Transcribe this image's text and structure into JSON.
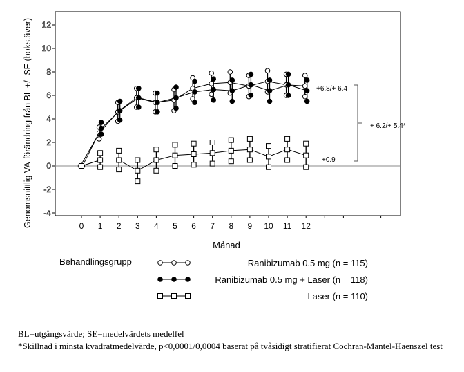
{
  "chart_data": {
    "type": "line",
    "xlabel": "Månad",
    "ylabel": "Genomsnittlig VA-förändring från BL +/- SE (bokstäver)",
    "x": [
      0,
      1,
      2,
      3,
      4,
      5,
      6,
      7,
      8,
      9,
      10,
      11,
      12
    ],
    "xticks": [
      "0",
      "1",
      "2",
      "3",
      "4",
      "5",
      "6",
      "7",
      "8",
      "9",
      "10",
      "11",
      "12"
    ],
    "yticks": [
      "-4",
      "-2",
      "0",
      "2",
      "4",
      "6",
      "8",
      "10",
      "12"
    ],
    "ylim": [
      -4,
      12.5
    ],
    "series": [
      {
        "name": "Ranibizumab 0.5 mg (n = 115)",
        "marker": "open-circle",
        "values": [
          0,
          2.8,
          4.6,
          5.8,
          5.4,
          5.6,
          6.6,
          7.0,
          7.1,
          6.8,
          7.2,
          6.9,
          6.8
        ],
        "se": [
          0,
          0.5,
          0.8,
          0.8,
          0.8,
          0.9,
          0.9,
          0.9,
          0.9,
          0.9,
          0.9,
          0.9,
          0.9
        ]
      },
      {
        "name": "Ranibizumab 0.5 mg + Laser (n = 118)",
        "marker": "filled-circle",
        "values": [
          0,
          3.2,
          4.7,
          5.8,
          5.4,
          5.8,
          6.3,
          6.5,
          6.4,
          6.9,
          6.4,
          6.9,
          6.4
        ],
        "se": [
          0,
          0.5,
          0.8,
          0.8,
          0.8,
          0.9,
          0.9,
          0.9,
          0.9,
          0.9,
          0.9,
          0.9,
          0.9
        ]
      },
      {
        "name": "Laser (n = 110)",
        "marker": "open-square",
        "values": [
          0,
          0.5,
          0.5,
          -0.4,
          0.5,
          0.9,
          1.0,
          1.1,
          1.3,
          1.4,
          0.8,
          1.4,
          0.9
        ],
        "se": [
          0,
          0.6,
          0.8,
          0.9,
          0.9,
          0.9,
          0.9,
          0.9,
          0.9,
          0.9,
          0.9,
          0.9,
          1.0
        ]
      }
    ],
    "annotations": [
      "+6.8/+ 6.4",
      "+ 6.2/+ 5.4*",
      "+0.9"
    ],
    "legend_title": "Behandlingsgrupp",
    "legend_placement": "bottom"
  },
  "footnotes": [
    "BL=utgångsvärde; SE=medelvärdets medelfel",
    "*Skillnad i minsta kvadratmedelvärde, p<0,0001/0,0004 baserat på tvåsidigt stratifierat Cochran-Mantel-Haenszel test"
  ]
}
